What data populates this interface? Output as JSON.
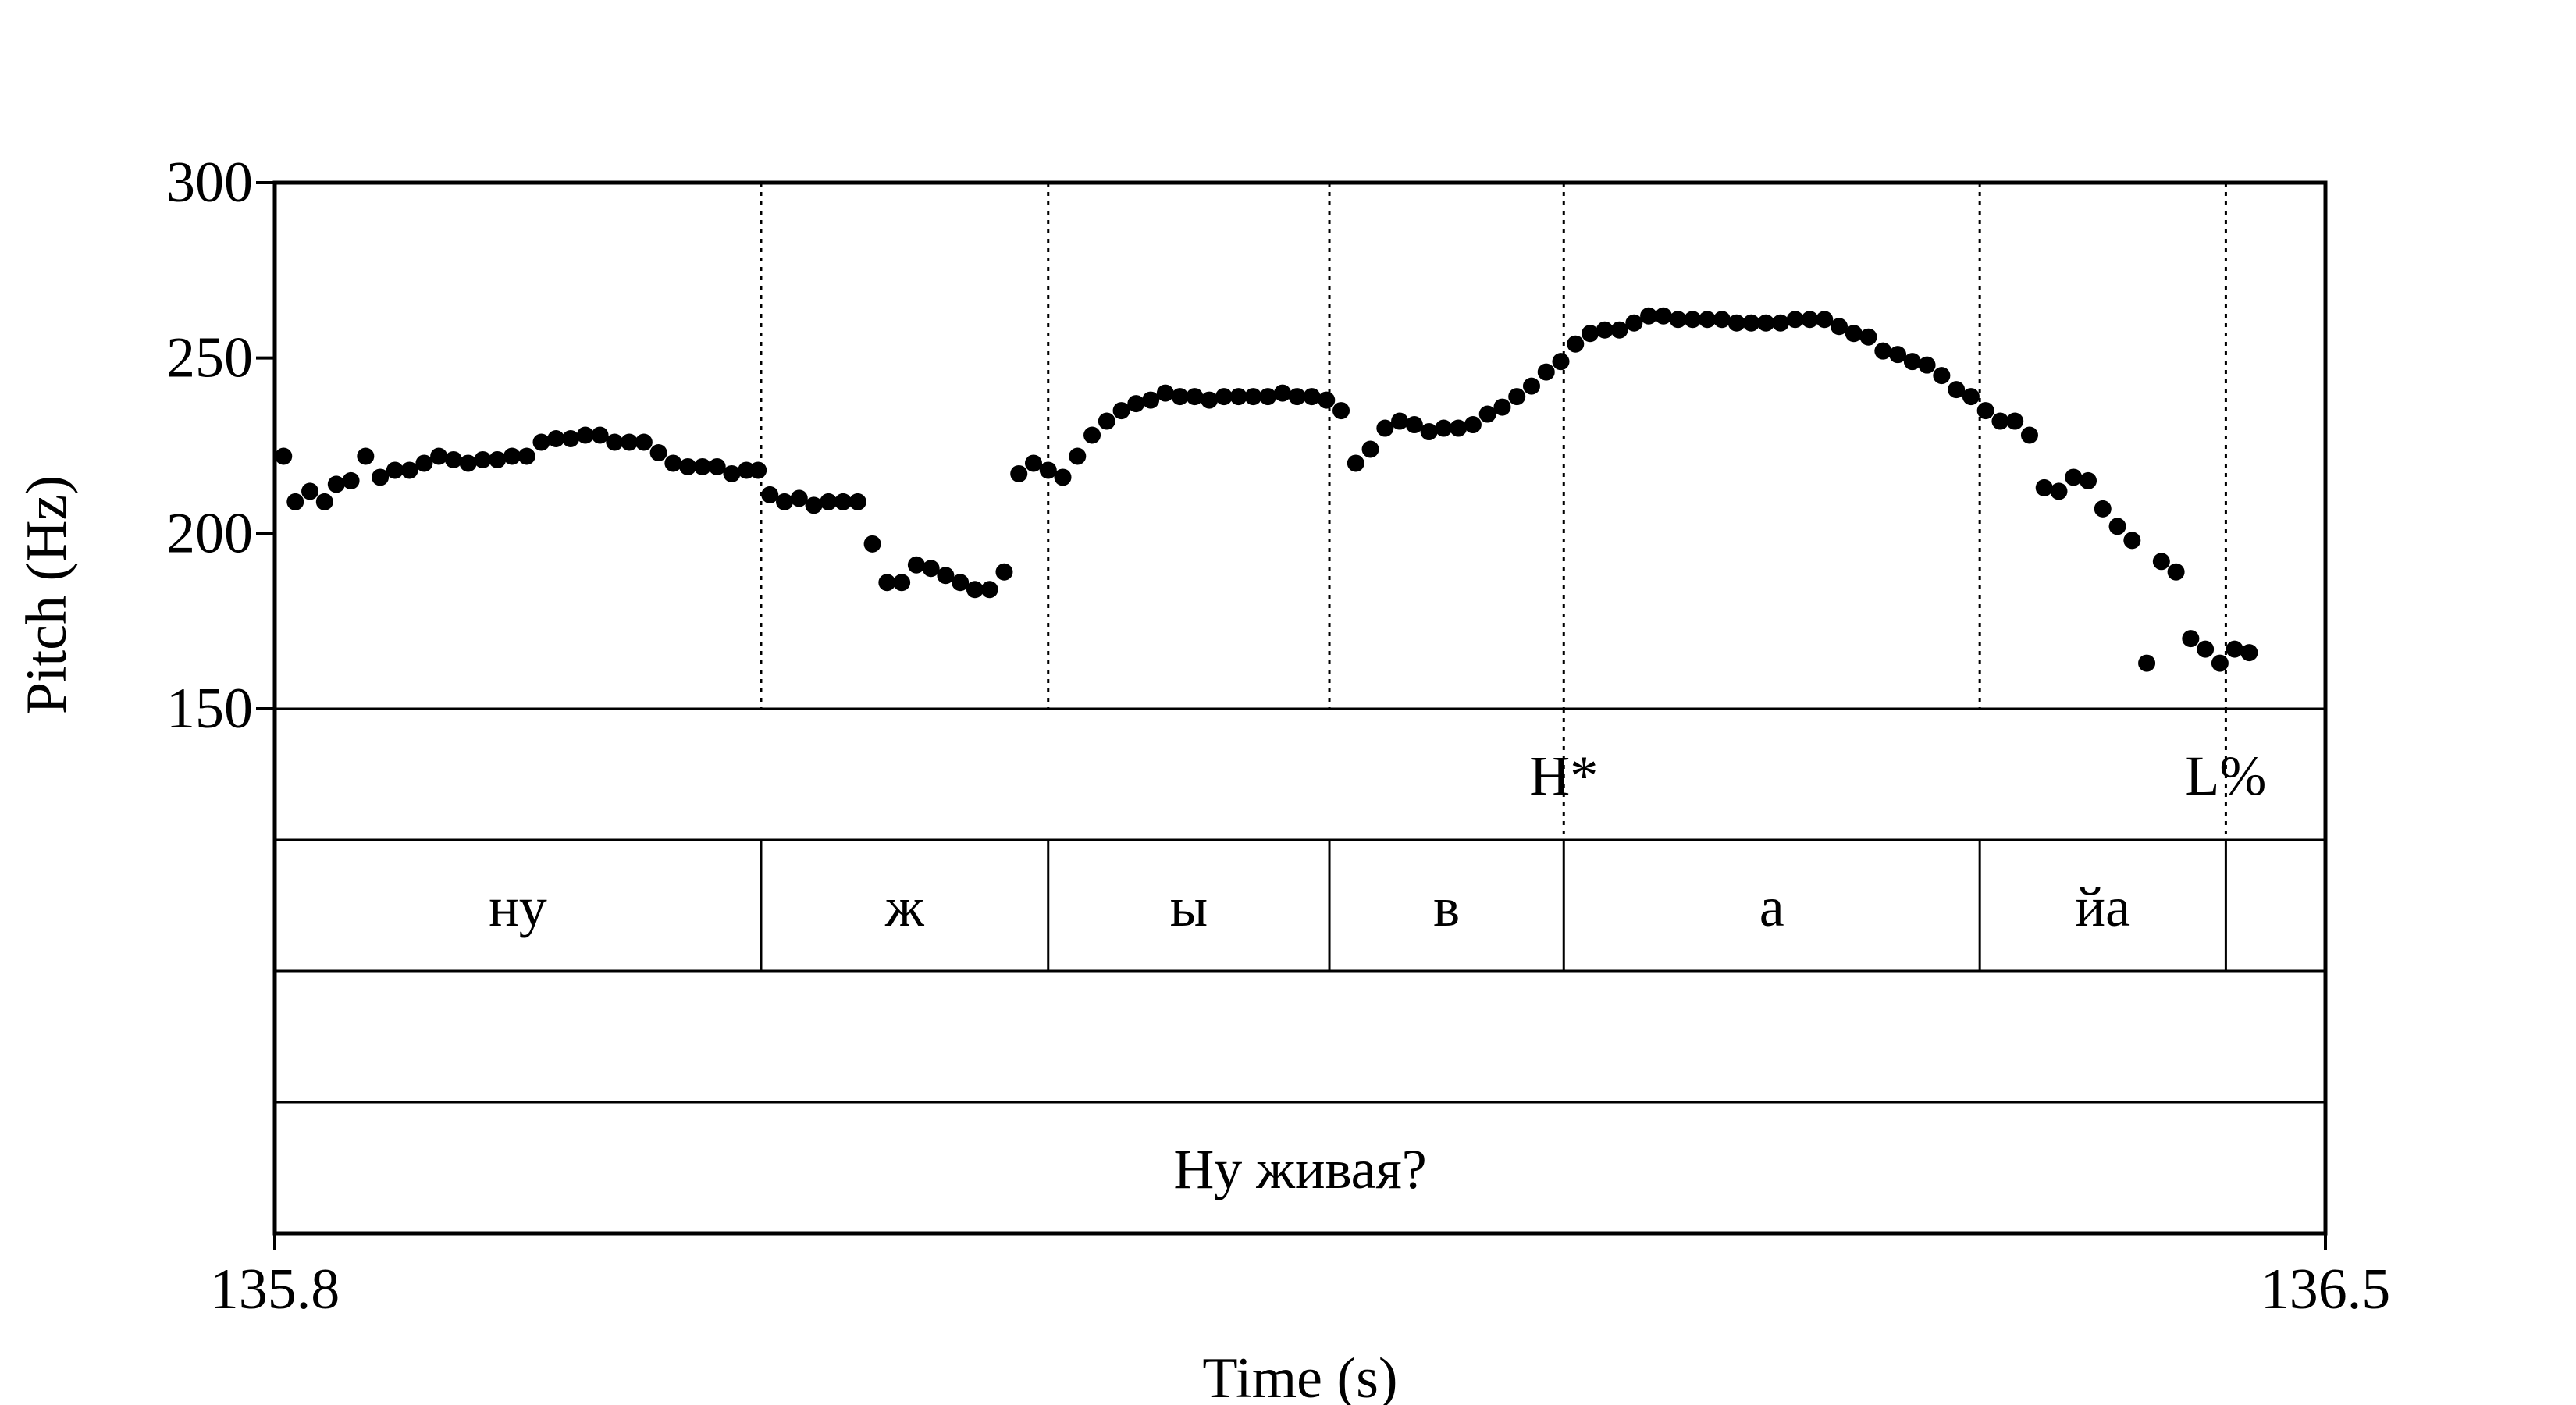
{
  "chart_data": {
    "type": "scatter",
    "xlabel": "Time (s)",
    "ylabel": "Pitch (Hz)",
    "xlim": [
      135.8,
      136.5
    ],
    "ylim": [
      150,
      300
    ],
    "x_tick_labels": [
      "135.8",
      "136.5"
    ],
    "y_ticks": [
      150,
      200,
      250,
      300
    ],
    "y_tick_labels": [
      "150",
      "200",
      "250",
      "300"
    ],
    "marker_color": "#000000",
    "boundaries": [
      135.966,
      136.064,
      136.16,
      136.24,
      136.382,
      136.466
    ],
    "tiers": [
      {
        "name": "tones",
        "intervals": [],
        "points": [
          {
            "time": 136.24,
            "label": "H*"
          },
          {
            "time": 136.466,
            "label": "L%"
          }
        ]
      },
      {
        "name": "syllables",
        "intervals": [
          {
            "start": 135.8,
            "end": 135.966,
            "label": "ну"
          },
          {
            "start": 135.966,
            "end": 136.064,
            "label": "ж"
          },
          {
            "start": 136.064,
            "end": 136.16,
            "label": "ы"
          },
          {
            "start": 136.16,
            "end": 136.24,
            "label": "в"
          },
          {
            "start": 136.24,
            "end": 136.382,
            "label": "а"
          },
          {
            "start": 136.382,
            "end": 136.466,
            "label": "йа"
          },
          {
            "start": 136.466,
            "end": 136.5,
            "label": ""
          }
        ],
        "points": []
      },
      {
        "name": "empty",
        "intervals": [],
        "points": []
      },
      {
        "name": "sentence",
        "intervals": [
          {
            "start": 135.8,
            "end": 136.5,
            "label": "Ну живая?"
          }
        ],
        "points": []
      }
    ],
    "points": [
      [
        135.803,
        222
      ],
      [
        135.807,
        209
      ],
      [
        135.812,
        212
      ],
      [
        135.817,
        209
      ],
      [
        135.821,
        214
      ],
      [
        135.826,
        215
      ],
      [
        135.831,
        222
      ],
      [
        135.836,
        216
      ],
      [
        135.841,
        218
      ],
      [
        135.846,
        218
      ],
      [
        135.851,
        220
      ],
      [
        135.856,
        222
      ],
      [
        135.861,
        221
      ],
      [
        135.866,
        220
      ],
      [
        135.871,
        221
      ],
      [
        135.876,
        221
      ],
      [
        135.881,
        222
      ],
      [
        135.886,
        222
      ],
      [
        135.891,
        226
      ],
      [
        135.896,
        227
      ],
      [
        135.901,
        227
      ],
      [
        135.906,
        228
      ],
      [
        135.911,
        228
      ],
      [
        135.916,
        226
      ],
      [
        135.921,
        226
      ],
      [
        135.926,
        226
      ],
      [
        135.931,
        223
      ],
      [
        135.936,
        220
      ],
      [
        135.941,
        219
      ],
      [
        135.946,
        219
      ],
      [
        135.951,
        219
      ],
      [
        135.956,
        217
      ],
      [
        135.961,
        218
      ],
      [
        135.965,
        218
      ],
      [
        135.969,
        211
      ],
      [
        135.974,
        209
      ],
      [
        135.979,
        210
      ],
      [
        135.984,
        208
      ],
      [
        135.989,
        209
      ],
      [
        135.994,
        209
      ],
      [
        135.999,
        209
      ],
      [
        136.004,
        197
      ],
      [
        136.009,
        186
      ],
      [
        136.014,
        186
      ],
      [
        136.019,
        191
      ],
      [
        136.024,
        190
      ],
      [
        136.029,
        188
      ],
      [
        136.034,
        186
      ],
      [
        136.039,
        184
      ],
      [
        136.044,
        184
      ],
      [
        136.049,
        189
      ],
      [
        136.054,
        217
      ],
      [
        136.059,
        220
      ],
      [
        136.064,
        218
      ],
      [
        136.069,
        216
      ],
      [
        136.074,
        222
      ],
      [
        136.079,
        228
      ],
      [
        136.084,
        232
      ],
      [
        136.089,
        235
      ],
      [
        136.094,
        237
      ],
      [
        136.099,
        238
      ],
      [
        136.104,
        240
      ],
      [
        136.109,
        239
      ],
      [
        136.114,
        239
      ],
      [
        136.119,
        238
      ],
      [
        136.124,
        239
      ],
      [
        136.129,
        239
      ],
      [
        136.134,
        239
      ],
      [
        136.139,
        239
      ],
      [
        136.144,
        240
      ],
      [
        136.149,
        239
      ],
      [
        136.154,
        239
      ],
      [
        136.159,
        238
      ],
      [
        136.164,
        235
      ],
      [
        136.169,
        220
      ],
      [
        136.174,
        224
      ],
      [
        136.179,
        230
      ],
      [
        136.184,
        232
      ],
      [
        136.189,
        231
      ],
      [
        136.194,
        229
      ],
      [
        136.199,
        230
      ],
      [
        136.204,
        230
      ],
      [
        136.209,
        231
      ],
      [
        136.214,
        234
      ],
      [
        136.219,
        236
      ],
      [
        136.224,
        239
      ],
      [
        136.229,
        242
      ],
      [
        136.234,
        246
      ],
      [
        136.239,
        249
      ],
      [
        136.244,
        254
      ],
      [
        136.249,
        257
      ],
      [
        136.254,
        258
      ],
      [
        136.259,
        258
      ],
      [
        136.264,
        260
      ],
      [
        136.269,
        262
      ],
      [
        136.274,
        262
      ],
      [
        136.279,
        261
      ],
      [
        136.284,
        261
      ],
      [
        136.289,
        261
      ],
      [
        136.294,
        261
      ],
      [
        136.299,
        260
      ],
      [
        136.304,
        260
      ],
      [
        136.309,
        260
      ],
      [
        136.314,
        260
      ],
      [
        136.319,
        261
      ],
      [
        136.324,
        261
      ],
      [
        136.329,
        261
      ],
      [
        136.334,
        259
      ],
      [
        136.339,
        257
      ],
      [
        136.344,
        256
      ],
      [
        136.349,
        252
      ],
      [
        136.354,
        251
      ],
      [
        136.359,
        249
      ],
      [
        136.364,
        248
      ],
      [
        136.369,
        245
      ],
      [
        136.374,
        241
      ],
      [
        136.379,
        239
      ],
      [
        136.384,
        235
      ],
      [
        136.389,
        232
      ],
      [
        136.394,
        232
      ],
      [
        136.399,
        228
      ],
      [
        136.404,
        213
      ],
      [
        136.409,
        212
      ],
      [
        136.414,
        216
      ],
      [
        136.419,
        215
      ],
      [
        136.424,
        207
      ],
      [
        136.429,
        202
      ],
      [
        136.434,
        198
      ],
      [
        136.439,
        163
      ],
      [
        136.444,
        192
      ],
      [
        136.449,
        189
      ],
      [
        136.454,
        170
      ],
      [
        136.459,
        167
      ],
      [
        136.464,
        163
      ],
      [
        136.469,
        167
      ],
      [
        136.474,
        166
      ]
    ]
  }
}
